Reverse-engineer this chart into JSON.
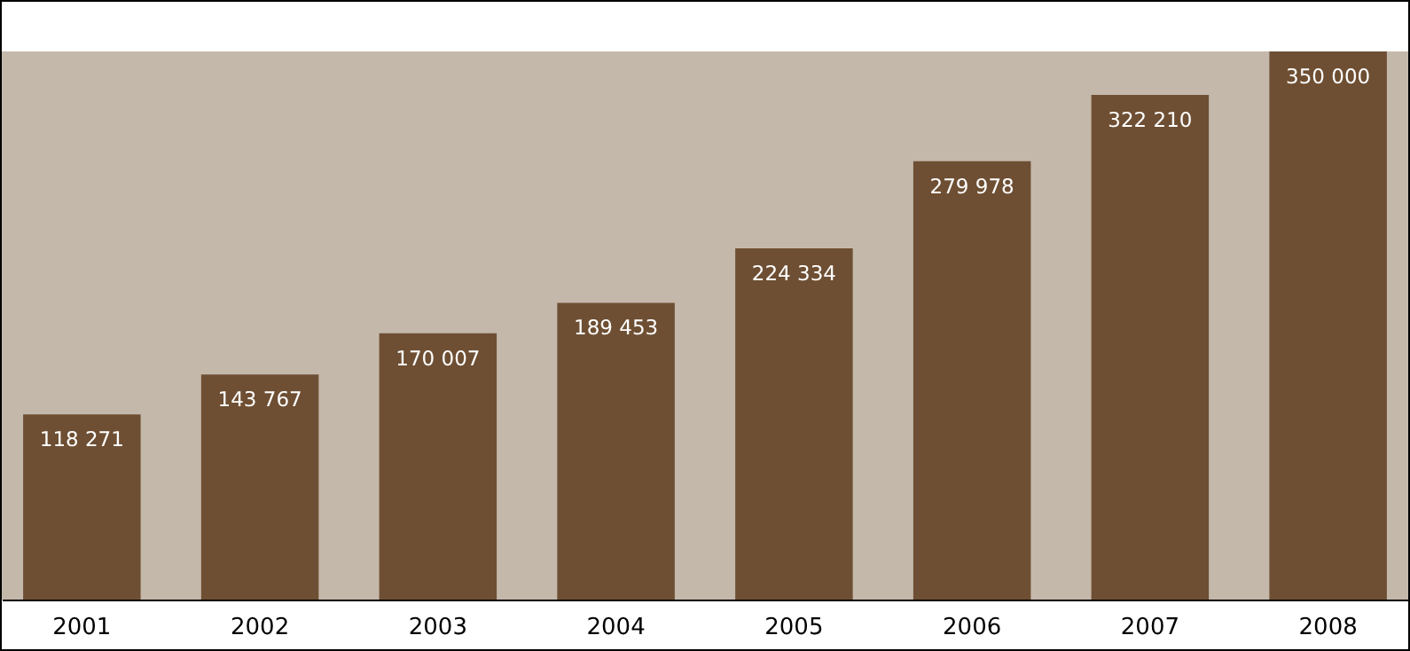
{
  "chart_data": {
    "type": "bar",
    "categories": [
      "2001",
      "2002",
      "2003",
      "2004",
      "2005",
      "2006",
      "2007",
      "2008"
    ],
    "values": [
      118271,
      143767,
      170007,
      189453,
      224334,
      279978,
      322210,
      350000
    ],
    "value_labels": [
      "118 271",
      "143 767",
      "170 007",
      "189 453",
      "224 334",
      "279 978",
      "322 210",
      "350 000"
    ],
    "color": "#6e4f33",
    "grid": false,
    "tick_labels": "x"
  }
}
